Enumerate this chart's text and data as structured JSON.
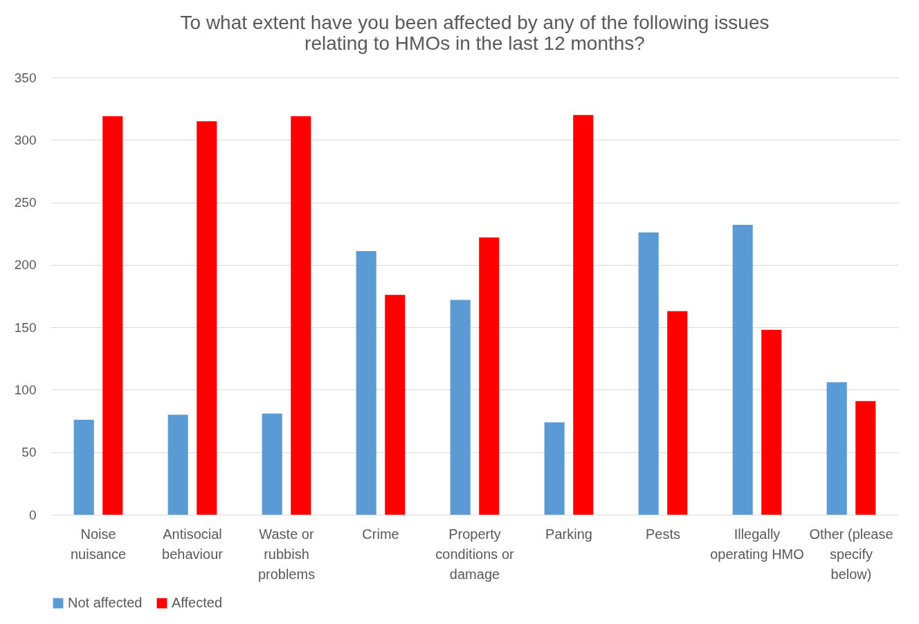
{
  "chart_data": {
    "type": "bar",
    "title": "To what extent have you been affected by any of the following issues relating to HMOs in the last 12 months?",
    "categories": [
      "Noise nuisance",
      "Antisocial behaviour",
      "Waste or rubbish problems",
      "Crime",
      "Property conditions or damage",
      "Parking",
      "Pests",
      "Illegally operating HMO",
      "Other (please specify below)"
    ],
    "series": [
      {
        "name": "Not affected",
        "color": "#5b9bd5",
        "values": [
          76,
          80,
          81,
          211,
          172,
          74,
          226,
          232,
          106
        ]
      },
      {
        "name": "Affected",
        "color": "#ff0000",
        "values": [
          319,
          315,
          319,
          176,
          222,
          320,
          163,
          148,
          91
        ]
      }
    ],
    "ylim": [
      0,
      350
    ],
    "yticks": [
      0,
      50,
      100,
      150,
      200,
      250,
      300,
      350
    ],
    "grid": "y",
    "legend": "bottom"
  }
}
